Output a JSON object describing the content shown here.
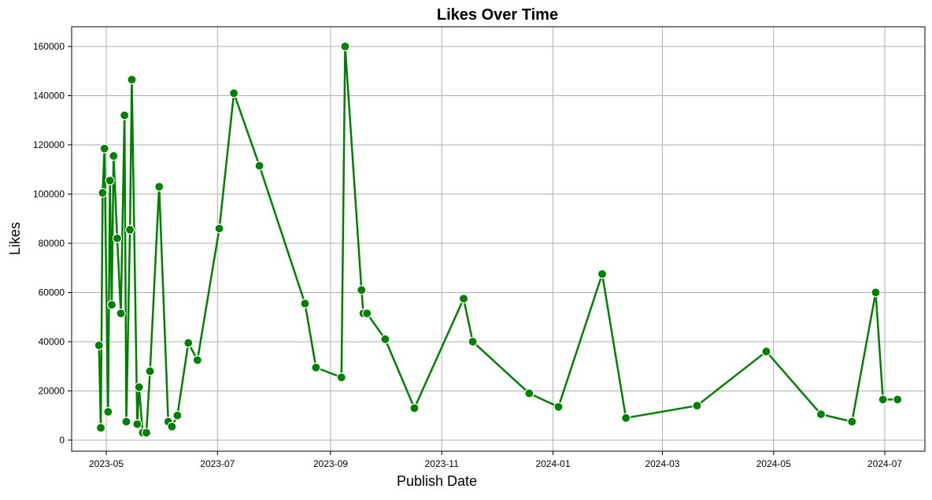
{
  "chart_data": {
    "type": "line",
    "title": "Likes Over Time",
    "xlabel": "Publish Date",
    "ylabel": "Likes",
    "grid": true,
    "legend": "none",
    "xlim": [
      "2023-04-12",
      "2024-07-23"
    ],
    "ylim": [
      -4500,
      168000
    ],
    "x_ticks": [
      "2023-05",
      "2023-07",
      "2023-09",
      "2023-11",
      "2024-01",
      "2024-03",
      "2024-05",
      "2024-07"
    ],
    "y_ticks": [
      0,
      20000,
      40000,
      60000,
      80000,
      100000,
      120000,
      140000,
      160000
    ],
    "series": [
      {
        "color": "#008000",
        "marker": "circle",
        "x": [
          "2023-04-27",
          "2023-04-28",
          "2023-04-29",
          "2023-04-30",
          "2023-05-02",
          "2023-05-03",
          "2023-05-04",
          "2023-05-05",
          "2023-05-07",
          "2023-05-09",
          "2023-05-11",
          "2023-05-12",
          "2023-05-14",
          "2023-05-15",
          "2023-05-18",
          "2023-05-19",
          "2023-05-21",
          "2023-05-23",
          "2023-05-25",
          "2023-05-30",
          "2023-06-04",
          "2023-06-06",
          "2023-06-09",
          "2023-06-15",
          "2023-06-20",
          "2023-07-02",
          "2023-07-10",
          "2023-07-24",
          "2023-08-18",
          "2023-08-24",
          "2023-09-07",
          "2023-09-09",
          "2023-09-18",
          "2023-09-19",
          "2023-09-21",
          "2023-10-01",
          "2023-10-17",
          "2023-11-13",
          "2023-11-18",
          "2023-12-19",
          "2024-01-04",
          "2024-01-28",
          "2024-02-10",
          "2024-03-20",
          "2024-04-27",
          "2024-05-27",
          "2024-06-13",
          "2024-06-26",
          "2024-06-30",
          "2024-07-08"
        ],
        "y": [
          38500,
          5000,
          100500,
          118500,
          11500,
          105500,
          55000,
          115500,
          82000,
          51500,
          132000,
          7500,
          85500,
          146500,
          6500,
          21500,
          3000,
          3000,
          28000,
          103000,
          7500,
          5500,
          10000,
          39500,
          32500,
          86000,
          141000,
          111500,
          55500,
          29500,
          25500,
          160000,
          61000,
          51500,
          51500,
          41000,
          13000,
          57500,
          40000,
          19000,
          13500,
          67500,
          9000,
          14000,
          36000,
          10500,
          7500,
          60000,
          16500,
          16500
        ]
      }
    ]
  }
}
